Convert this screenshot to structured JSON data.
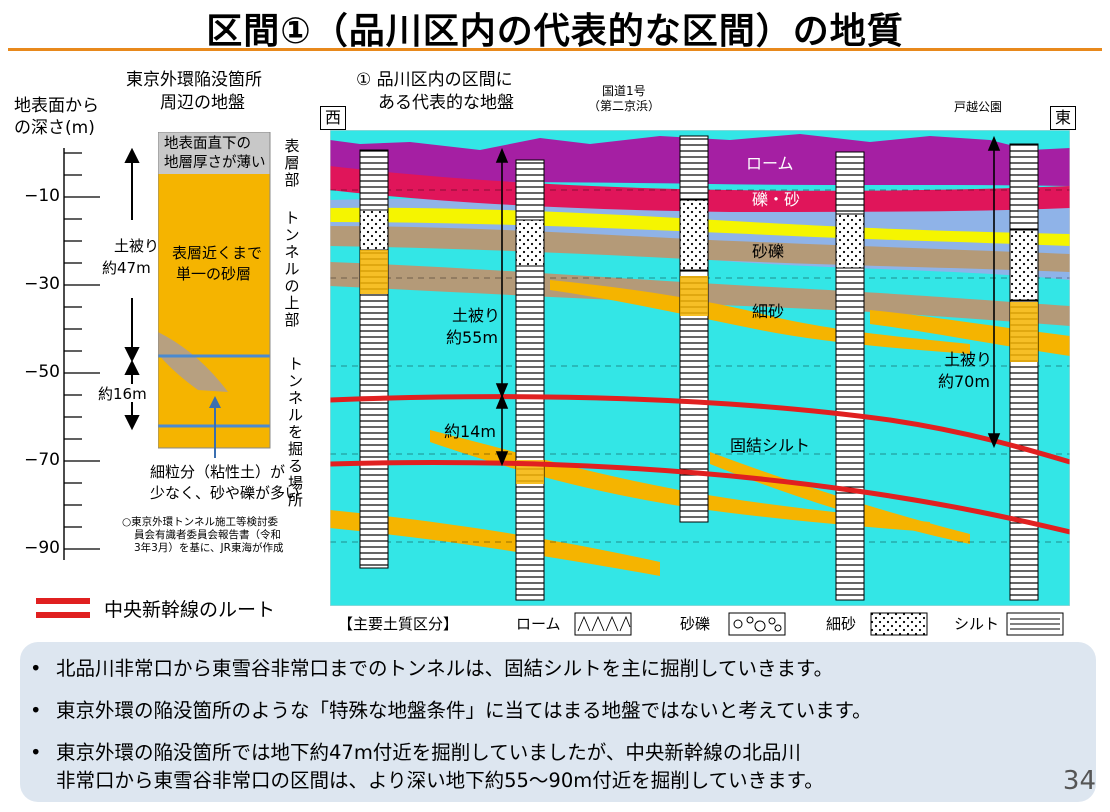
{
  "title": "区間①（品川区内の代表的な区間）の地質",
  "left_panel": {
    "depth_axis_label_1": "地表面から",
    "depth_axis_label_2": "の深さ(m)",
    "ticks": [
      "−10",
      "−30",
      "−50",
      "−70",
      "−90"
    ],
    "heading_1": "東京外環陥没箇所",
    "heading_2": "周辺の地盤",
    "thin_layer_1": "地表面直下の",
    "thin_layer_2": "地層厚さが薄い",
    "side_surface": "表層部",
    "side_upper": "トンネルの上部",
    "side_excavation": "トンネルを掘る場所",
    "cover_label_1": "土被り",
    "cover_label_2": "約47m",
    "excavation_range": "約16m",
    "sand_layer_1": "表層近くまで",
    "sand_layer_2": "単一の砂層",
    "fine_note_1": "細粒分（粘性土）が",
    "fine_note_2": "少なく、砂や礫が多い",
    "source_1": "○東京外環トンネル施工等検討委",
    "source_2": "員会有識者委員会報告書（令和",
    "source_3": "3年3月）を基に、JR東海が作成"
  },
  "right_panel": {
    "heading_1": "① 品川区内の区間に",
    "heading_2": "ある代表的な地盤",
    "west": "西",
    "east": "東",
    "road_1": "国道1号",
    "road_2": "（第二京浜）",
    "park": "戸越公園",
    "layer_loam": "ローム",
    "layer_gravel_sand": "礫・砂",
    "layer_sandy_gravel": "砂礫",
    "layer_fine_sand": "細砂",
    "layer_silt": "固結シルト",
    "cover_55_1": "土被り",
    "cover_55_2": "約55m",
    "cover_70_1": "土被り",
    "cover_70_2": "約70m",
    "gap_14": "約14m"
  },
  "route_legend": "中央新幹線のルート",
  "soil_legend": {
    "title": "【主要土質区分】",
    "items": [
      "ローム",
      "砂礫",
      "細砂",
      "シルト"
    ]
  },
  "bullets": [
    "北品川非常口から東雪谷非常口までのトンネルは、固結シルトを主に掘削していきます。",
    "東京外環の陥没箇所のような「特殊な地盤条件」に当てはまる地盤ではないと考えています。",
    "東京外環の陥没箇所では地下約47m付近を掘削していましたが、中央新幹線の北品川",
    "非常口から東雪谷非常口の区間は、より深い地下約55～90m付近を掘削していきます。"
  ],
  "page_number": "34",
  "colors": {
    "loam": "#a51fa3",
    "gravel_sand": "#e0155a",
    "sandy_gravel": "#b49a78",
    "fine_sand": "#f5b400",
    "silt": "#33e6e6",
    "route": "#e02020",
    "accent": "#e8891c"
  }
}
